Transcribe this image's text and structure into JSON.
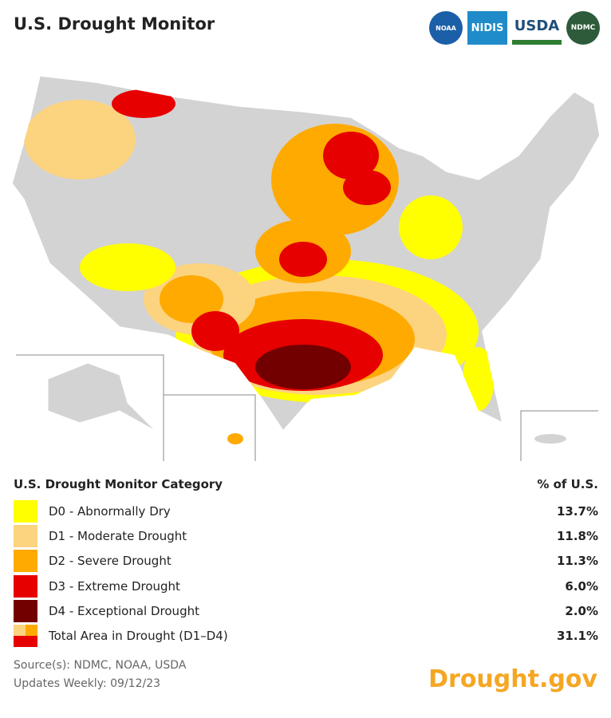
{
  "header": {
    "title": "U.S. Drought Monitor",
    "logos": [
      "NOAA",
      "NIDIS",
      "USDA",
      "NDMC"
    ]
  },
  "legend": {
    "category_header": "U.S. Drought Monitor Category",
    "value_header": "% of U.S.",
    "rows": [
      {
        "label": "D0 - Abnormally Dry",
        "value": "13.7%"
      },
      {
        "label": "D1 - Moderate Drought",
        "value": "11.8%"
      },
      {
        "label": "D2 - Severe Drought",
        "value": "11.3%"
      },
      {
        "label": "D3 - Extreme Drought",
        "value": "6.0%"
      },
      {
        "label": "D4 - Exceptional Drought",
        "value": "2.0%"
      },
      {
        "label": "Total Area in Drought (D1–D4)",
        "value": "31.1%"
      }
    ]
  },
  "footer": {
    "source": "Source(s): NDMC, NOAA, USDA",
    "updated": "Updates Weekly: 09/12/23",
    "brand": "Drought.gov"
  }
}
